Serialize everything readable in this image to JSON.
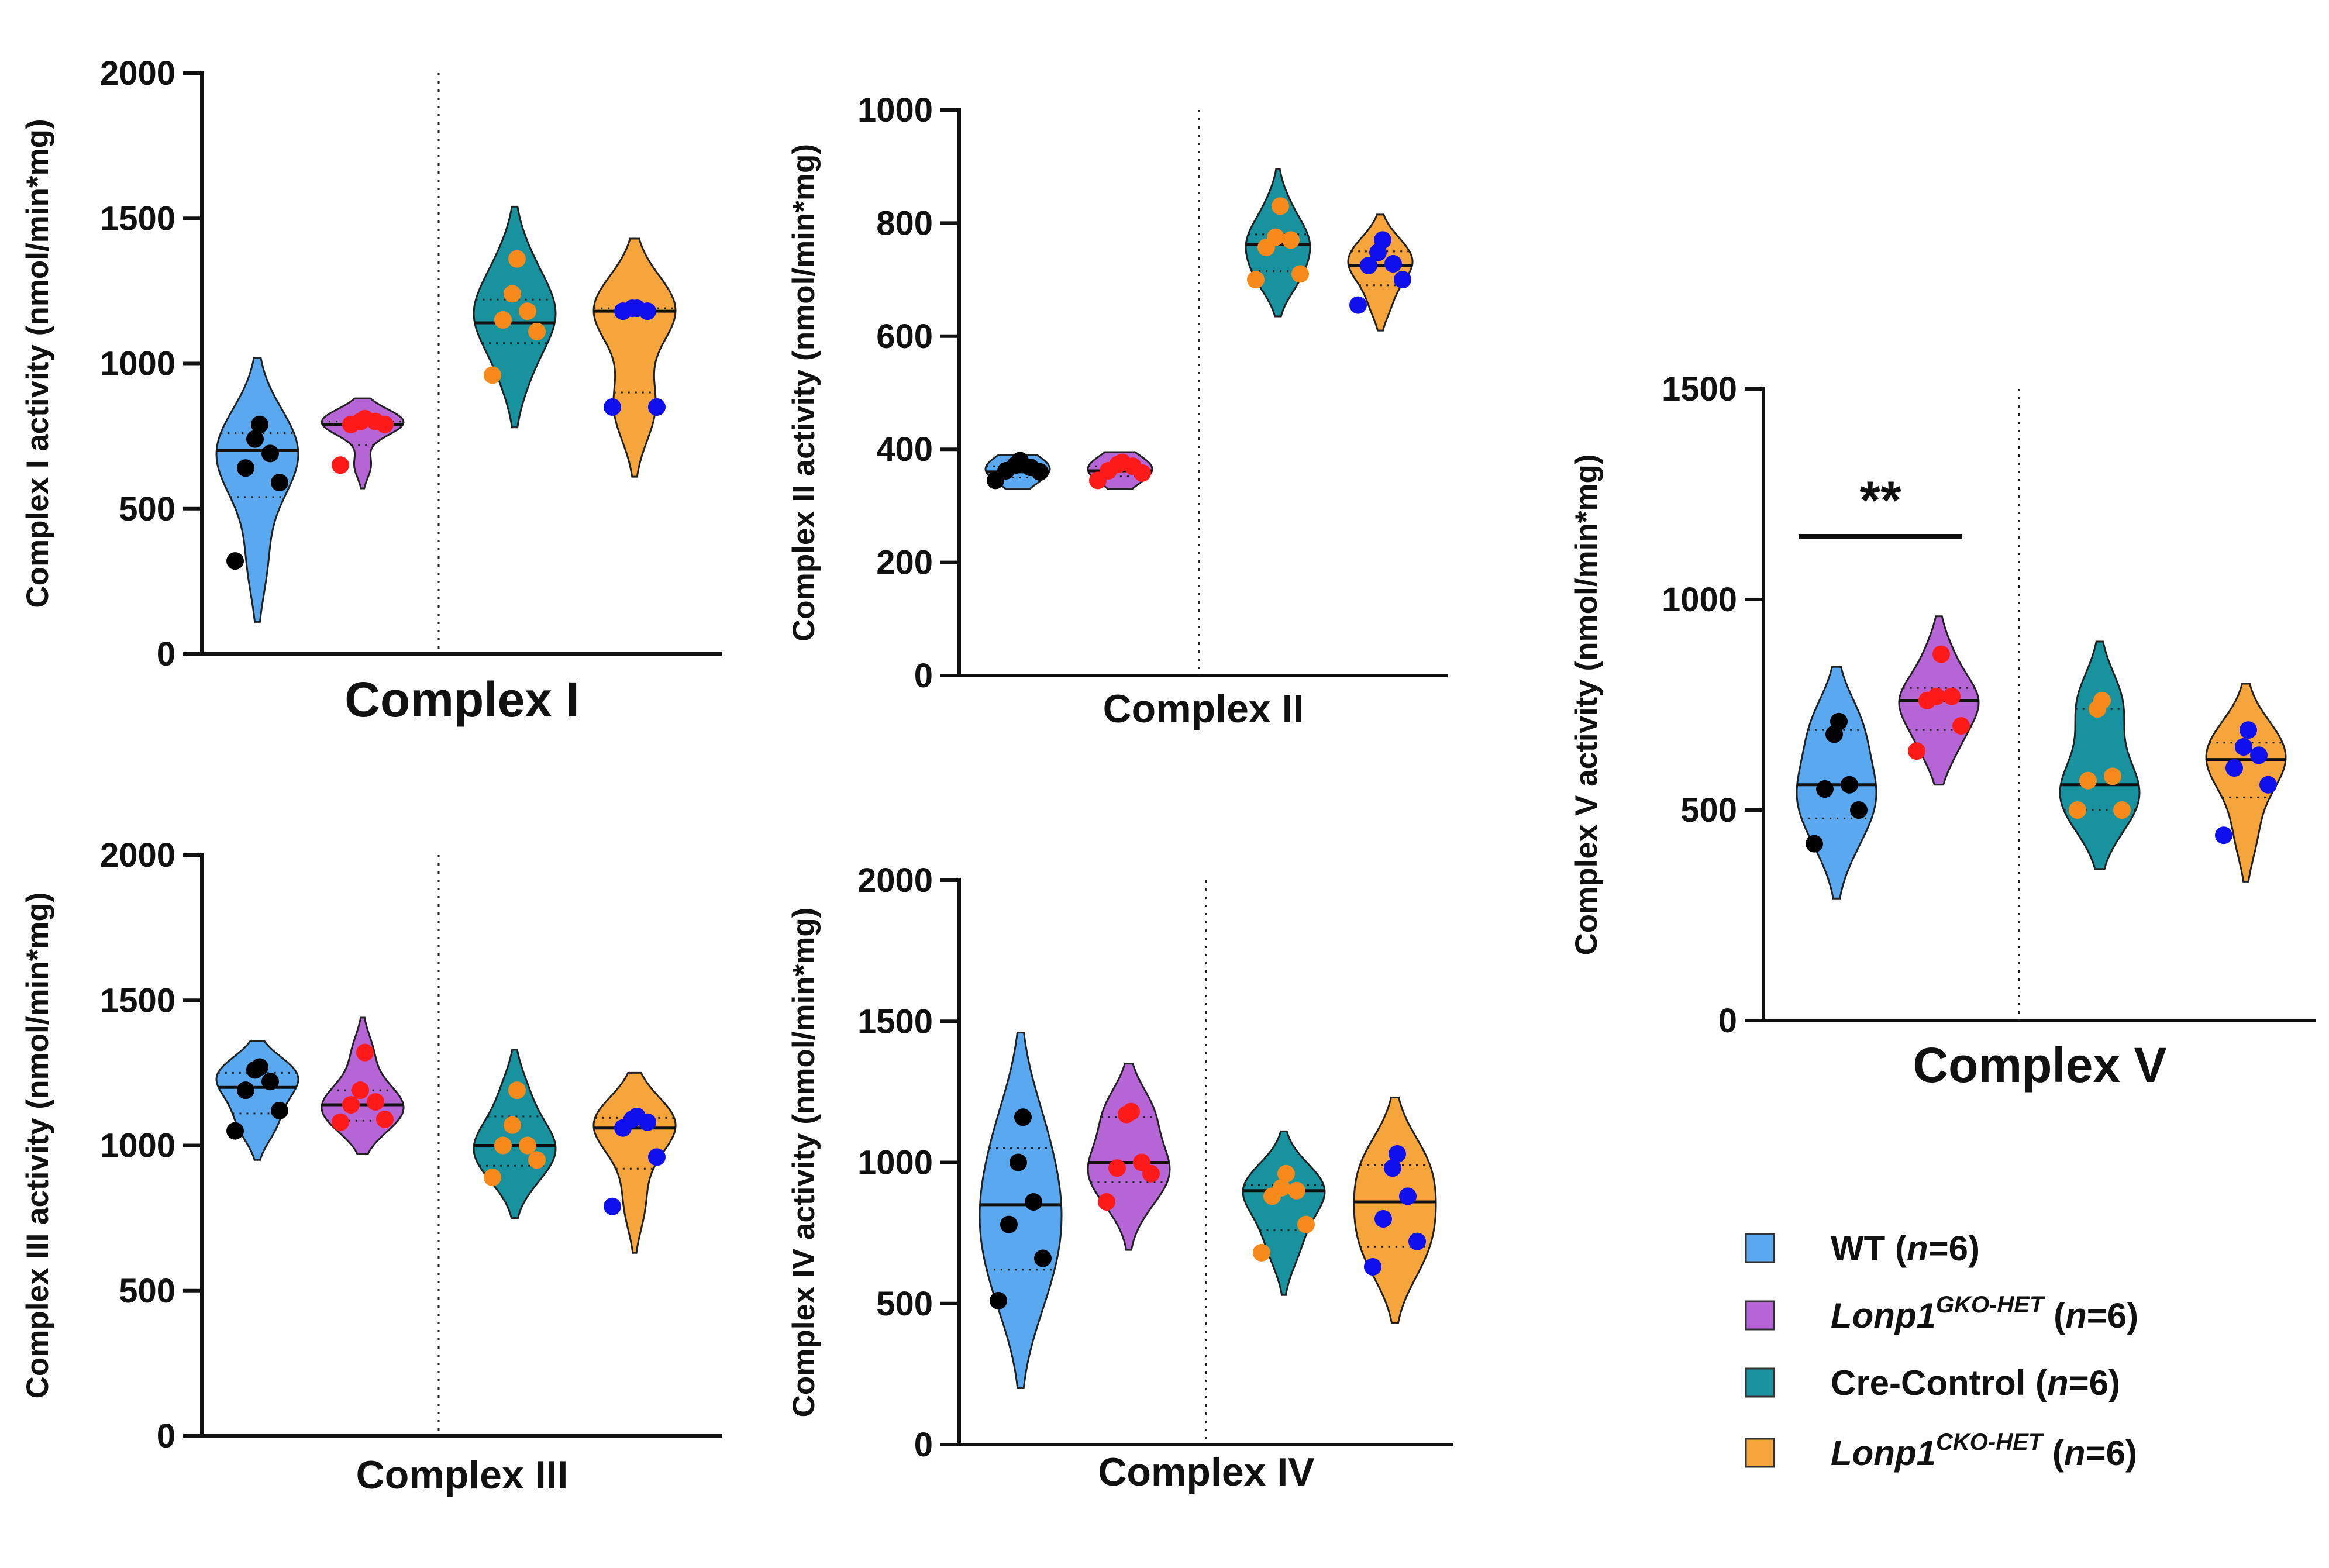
{
  "colors": {
    "wt": "#5aa9f0",
    "gko": "#b565d6",
    "cre": "#17929e",
    "cko": "#f6a43c",
    "dot_wt": "#000000",
    "dot_gko": "#ff1a1a",
    "dot_cre": "#f78a1a",
    "dot_cko": "#1010ee"
  },
  "legend": {
    "items": [
      {
        "key": "wt",
        "label": "WT",
        "sup": "",
        "n": "6"
      },
      {
        "key": "gko",
        "label": "Lonp1",
        "sup": "GKO-HET",
        "n": "6"
      },
      {
        "key": "cre",
        "label": "Cre-Control",
        "sup": "",
        "n": "6"
      },
      {
        "key": "cko",
        "label": "Lonp1",
        "sup": "CKO-HET",
        "n": "6"
      }
    ],
    "n_prefix": "n"
  },
  "chart_data": [
    {
      "id": "c1",
      "type": "violin",
      "title": "Complex I",
      "xlabel": "Complex I",
      "ylabel": "Complex I activity (nmol/min*mg)",
      "ylim": [
        0,
        2000
      ],
      "yticks": [
        0,
        500,
        1000,
        1500,
        2000
      ],
      "groups": [
        {
          "key": "wt",
          "values": [
            320,
            590,
            640,
            690,
            740,
            790
          ],
          "median": 700,
          "q1": 540,
          "q3": 760,
          "range": [
            110,
            1020
          ]
        },
        {
          "key": "gko",
          "values": [
            650,
            790,
            790,
            800,
            800,
            810
          ],
          "median": 790,
          "q1": 720,
          "q3": 800,
          "range": [
            570,
            880
          ]
        },
        {
          "key": "cre",
          "values": [
            960,
            1110,
            1150,
            1180,
            1240,
            1360
          ],
          "median": 1140,
          "q1": 1070,
          "q3": 1220,
          "range": [
            780,
            1540
          ]
        },
        {
          "key": "cko",
          "values": [
            850,
            850,
            1180,
            1180,
            1190,
            1190
          ],
          "median": 1180,
          "q1": 900,
          "q3": 1190,
          "range": [
            610,
            1430
          ]
        }
      ],
      "significance": null
    },
    {
      "id": "c2",
      "type": "violin",
      "title": "Complex II",
      "xlabel": "Complex II",
      "ylabel": "Complex II activity (nmol/min*mg)",
      "ylim": [
        0,
        1000
      ],
      "yticks": [
        0,
        200,
        400,
        600,
        800,
        1000
      ],
      "groups": [
        {
          "key": "wt",
          "values": [
            345,
            360,
            362,
            368,
            372,
            380
          ],
          "median": 360,
          "q1": 350,
          "q3": 370,
          "range": [
            330,
            390
          ]
        },
        {
          "key": "gko",
          "values": [
            345,
            358,
            362,
            370,
            373,
            377
          ],
          "median": 362,
          "q1": 352,
          "q3": 370,
          "range": [
            330,
            395
          ]
        },
        {
          "key": "cre",
          "values": [
            700,
            710,
            757,
            770,
            775,
            830
          ],
          "median": 762,
          "q1": 715,
          "q3": 780,
          "range": [
            635,
            895
          ]
        },
        {
          "key": "cko",
          "values": [
            655,
            700,
            725,
            728,
            748,
            770
          ],
          "median": 725,
          "q1": 690,
          "q3": 750,
          "range": [
            610,
            815
          ]
        }
      ],
      "significance": null
    },
    {
      "id": "c3",
      "type": "violin",
      "title": "Complex III",
      "xlabel": "Complex III",
      "ylabel": "Complex III activity (nmol/min*mg)",
      "ylim": [
        0,
        2000
      ],
      "yticks": [
        0,
        500,
        1000,
        1500,
        2000
      ],
      "groups": [
        {
          "key": "wt",
          "values": [
            1050,
            1120,
            1190,
            1220,
            1260,
            1270
          ],
          "median": 1200,
          "q1": 1110,
          "q3": 1250,
          "range": [
            950,
            1360
          ]
        },
        {
          "key": "gko",
          "values": [
            1080,
            1090,
            1140,
            1150,
            1190,
            1320
          ],
          "median": 1140,
          "q1": 1085,
          "q3": 1190,
          "range": [
            970,
            1440
          ]
        },
        {
          "key": "cre",
          "values": [
            890,
            950,
            1000,
            1000,
            1070,
            1190
          ],
          "median": 1000,
          "q1": 930,
          "q3": 1100,
          "range": [
            750,
            1330
          ]
        },
        {
          "key": "cko",
          "values": [
            790,
            960,
            1060,
            1080,
            1090,
            1100
          ],
          "median": 1060,
          "q1": 920,
          "q3": 1095,
          "range": [
            630,
            1250
          ]
        }
      ],
      "significance": null
    },
    {
      "id": "c4",
      "type": "violin",
      "title": "Complex IV",
      "xlabel": "Complex IV",
      "ylabel": "Complex IV activity (nmol/min*mg)",
      "ylim": [
        0,
        2000
      ],
      "yticks": [
        0,
        500,
        1000,
        1500,
        2000
      ],
      "groups": [
        {
          "key": "wt",
          "values": [
            510,
            660,
            780,
            860,
            1000,
            1160
          ],
          "median": 850,
          "q1": 620,
          "q3": 1050,
          "range": [
            200,
            1460
          ]
        },
        {
          "key": "gko",
          "values": [
            860,
            960,
            980,
            1000,
            1170,
            1180
          ],
          "median": 1000,
          "q1": 930,
          "q3": 1160,
          "range": [
            690,
            1350
          ]
        },
        {
          "key": "cre",
          "values": [
            680,
            780,
            880,
            900,
            910,
            960
          ],
          "median": 900,
          "q1": 760,
          "q3": 920,
          "range": [
            530,
            1110
          ]
        },
        {
          "key": "cko",
          "values": [
            630,
            720,
            800,
            880,
            980,
            1030
          ],
          "median": 860,
          "q1": 700,
          "q3": 990,
          "range": [
            430,
            1230
          ]
        }
      ],
      "significance": null
    },
    {
      "id": "c5",
      "type": "violin",
      "title": "Complex V",
      "xlabel": "Complex V",
      "ylabel": "Complex V activity (nmol/min*mg)",
      "ylim": [
        0,
        1500
      ],
      "yticks": [
        0,
        500,
        1000,
        1500
      ],
      "groups": [
        {
          "key": "wt",
          "values": [
            420,
            500,
            550,
            560,
            680,
            710
          ],
          "median": 560,
          "q1": 480,
          "q3": 690,
          "range": [
            290,
            840
          ]
        },
        {
          "key": "gko",
          "values": [
            640,
            700,
            760,
            770,
            770,
            870
          ],
          "median": 760,
          "q1": 690,
          "q3": 790,
          "range": [
            560,
            960
          ]
        },
        {
          "key": "cre",
          "values": [
            500,
            500,
            570,
            580,
            740,
            760
          ],
          "median": 560,
          "q1": 500,
          "q3": 740,
          "range": [
            360,
            900
          ]
        },
        {
          "key": "cko",
          "values": [
            440,
            560,
            600,
            630,
            650,
            690
          ],
          "median": 620,
          "q1": 530,
          "q3": 660,
          "range": [
            330,
            800
          ]
        }
      ],
      "significance": {
        "label": "**",
        "from": 0,
        "to": 1,
        "y": 1150
      }
    }
  ]
}
